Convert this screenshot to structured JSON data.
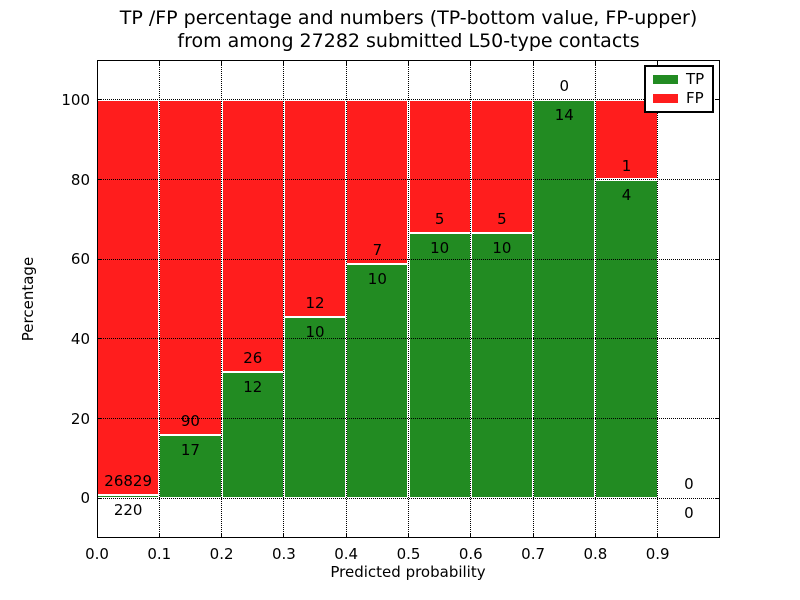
{
  "title": {
    "line1": "TP /FP percentage and numbers (TP-bottom value, FP-upper)",
    "line2": "from among 27282 submitted L50-type contacts"
  },
  "axes": {
    "xlabel": "Predicted probability",
    "ylabel": "Percentage",
    "x_ticks": [
      0.0,
      0.1,
      0.2,
      0.3,
      0.4,
      0.5,
      0.6,
      0.7,
      0.8,
      0.9
    ],
    "x_tick_labels": [
      "0.0",
      "0.1",
      "0.2",
      "0.3",
      "0.4",
      "0.5",
      "0.6",
      "0.7",
      "0.8",
      "0.9"
    ],
    "y_ticks": [
      0,
      20,
      40,
      60,
      80,
      100
    ],
    "y_tick_labels": [
      "0",
      "20",
      "40",
      "60",
      "80",
      "100"
    ]
  },
  "legend": {
    "position": "upper right",
    "entries": [
      {
        "label": "TP",
        "color": "#228B22"
      },
      {
        "label": "FP",
        "color": "#FF1D1D"
      }
    ]
  },
  "colors": {
    "background": "#ffffff",
    "tp_green": "#228B22",
    "fp_red": "#FF1D1D",
    "grid": "#000000",
    "bar_edge": "#ffffff"
  },
  "chart_data": {
    "type": "bar",
    "stacked": true,
    "title": "TP /FP percentage and numbers (TP-bottom value, FP-upper) from among 27282 submitted L50-type contacts",
    "xlabel": "Predicted probability",
    "ylabel": "Percentage",
    "total_contacts": 27282,
    "xlim": [
      0.0,
      1.0
    ],
    "ylim": [
      -10,
      110
    ],
    "grid": "dotted",
    "legend_position": "upper right",
    "bin_edges": [
      0.0,
      0.1,
      0.2,
      0.3,
      0.4,
      0.5,
      0.6,
      0.7,
      0.8,
      0.9,
      1.0
    ],
    "categories": [
      "0.0-0.1",
      "0.1-0.2",
      "0.2-0.3",
      "0.3-0.4",
      "0.4-0.5",
      "0.5-0.6",
      "0.6-0.7",
      "0.7-0.8",
      "0.8-0.9",
      "0.9-1.0"
    ],
    "series": [
      {
        "name": "TP",
        "color": "#228B22",
        "counts": [
          220,
          17,
          12,
          10,
          10,
          10,
          10,
          14,
          4,
          0
        ],
        "percent": [
          0.81,
          15.89,
          31.58,
          45.45,
          58.82,
          66.67,
          66.67,
          100.0,
          80.0,
          0.0
        ]
      },
      {
        "name": "FP",
        "color": "#FF1D1D",
        "counts": [
          26829,
          90,
          26,
          12,
          7,
          5,
          5,
          0,
          1,
          0
        ],
        "percent": [
          99.19,
          84.11,
          68.42,
          54.55,
          41.18,
          33.33,
          33.33,
          0.0,
          20.0,
          0.0
        ]
      }
    ]
  }
}
